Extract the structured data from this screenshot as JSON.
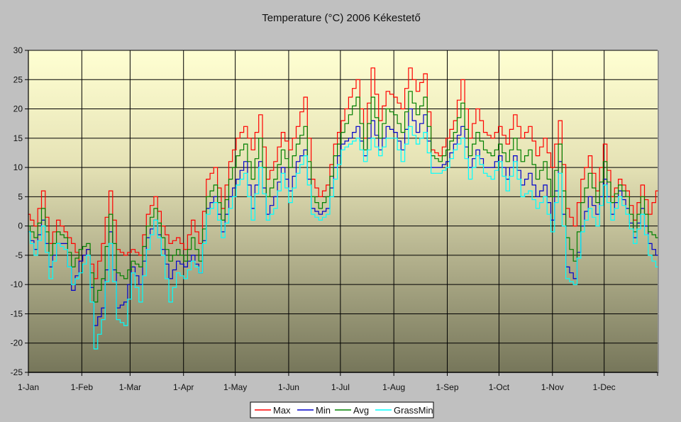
{
  "chart_data": {
    "type": "line",
    "title": "Temperature (°C) 2006 Kékestető",
    "xlabel": "",
    "ylabel": "",
    "ylim": [
      -25,
      30
    ],
    "yticks": [
      30,
      25,
      20,
      15,
      10,
      5,
      0,
      -5,
      -10,
      -15,
      -20,
      -25
    ],
    "xtick_labels": [
      "1-Jan",
      "1-Feb",
      "1-Mar",
      "1-Apr",
      "1-May",
      "1-Jun",
      "1-Jul",
      "1-Aug",
      "1-Sep",
      "1-Oct",
      "1-Nov",
      "1-Dec"
    ],
    "xtick_days": [
      0,
      31,
      59,
      90,
      120,
      151,
      181,
      212,
      243,
      273,
      304,
      334
    ],
    "days_in_year": 365,
    "grid": true,
    "legend_position": "bottom",
    "sample_interval_days": 5,
    "series": [
      {
        "name": "Max",
        "color": "#ff0000",
        "values": [
          2,
          0,
          6,
          -3,
          1,
          -1,
          -3,
          -6,
          -4,
          -9,
          -3,
          6,
          -4,
          -5,
          -4,
          -5,
          2,
          5,
          0,
          -3,
          -2,
          -4,
          1,
          -3,
          8,
          10,
          3,
          11,
          15,
          17,
          13,
          19,
          8,
          11,
          16,
          13,
          17,
          22,
          8,
          5,
          7,
          14,
          18,
          22,
          25,
          15,
          27,
          18,
          23,
          22,
          20,
          27,
          23,
          26,
          13,
          12,
          15,
          18,
          25,
          15,
          20,
          16,
          15,
          17,
          14,
          19,
          15,
          17,
          12,
          15,
          10,
          18,
          3,
          0,
          8,
          12,
          6,
          14,
          5,
          8,
          6,
          1,
          7,
          2,
          6
        ]
      },
      {
        "name": "Min",
        "color": "#0000cc",
        "values": [
          -1,
          -4,
          1,
          -7,
          -3,
          -3,
          -11,
          -6,
          -4,
          -17,
          -14,
          -1,
          -14,
          -13,
          -7,
          -10,
          -2,
          1,
          -4,
          -9,
          -6,
          -7,
          -5,
          -8,
          3,
          5,
          -1,
          5,
          8,
          11,
          3,
          11,
          2,
          5,
          10,
          6,
          11,
          13,
          3,
          2,
          3,
          10,
          14,
          15,
          17,
          12,
          18,
          13,
          17,
          16,
          13,
          20,
          16,
          19,
          10,
          10,
          11,
          14,
          17,
          10,
          13,
          10,
          10,
          12,
          8,
          12,
          7,
          9,
          5,
          7,
          1,
          11,
          -7,
          -9,
          0,
          5,
          2,
          8,
          2,
          6,
          3,
          -2,
          3,
          -3,
          -5
        ]
      },
      {
        "name": "Avg",
        "color": "#008000",
        "values": [
          0,
          -2,
          3,
          -5,
          -1,
          -2,
          -7,
          -4,
          -3,
          -13,
          -9,
          2,
          -8,
          -9,
          -6,
          -7,
          0,
          3,
          -2,
          -6,
          -4,
          -6,
          -2,
          -6,
          5,
          7,
          1,
          8,
          12,
          14,
          8,
          15,
          5,
          8,
          13,
          10,
          14,
          17,
          5,
          3,
          5,
          12,
          16,
          19,
          22,
          13,
          22,
          15,
          20,
          19,
          16,
          23,
          19,
          22,
          12,
          11,
          13,
          16,
          21,
          12,
          16,
          13,
          12,
          14,
          11,
          15,
          11,
          13,
          8,
          11,
          5,
          14,
          -2,
          -6,
          4,
          9,
          4,
          11,
          4,
          7,
          5,
          -1,
          5,
          -1,
          -2
        ]
      },
      {
        "name": "GrassMin",
        "color": "#00ffff",
        "values": [
          -1,
          -5,
          0,
          -9,
          -3,
          -4,
          -10,
          -8,
          -5,
          -21,
          -16,
          -3,
          -16,
          -17,
          -8,
          -13,
          -4,
          1,
          -5,
          -13,
          -8,
          -9,
          -6,
          -8,
          2,
          4,
          -2,
          3,
          7,
          9,
          1,
          10,
          1,
          3,
          9,
          4,
          9,
          12,
          2,
          1,
          2,
          8,
          13,
          14,
          15,
          11,
          15,
          12,
          15,
          15,
          11,
          17,
          14,
          16,
          9,
          9,
          10,
          13,
          15,
          8,
          12,
          9,
          8,
          11,
          6,
          11,
          5,
          6,
          3,
          5,
          -1,
          9,
          -9,
          -10,
          -1,
          3,
          0,
          7,
          1,
          5,
          2,
          -3,
          2,
          -5,
          -7
        ]
      }
    ]
  }
}
